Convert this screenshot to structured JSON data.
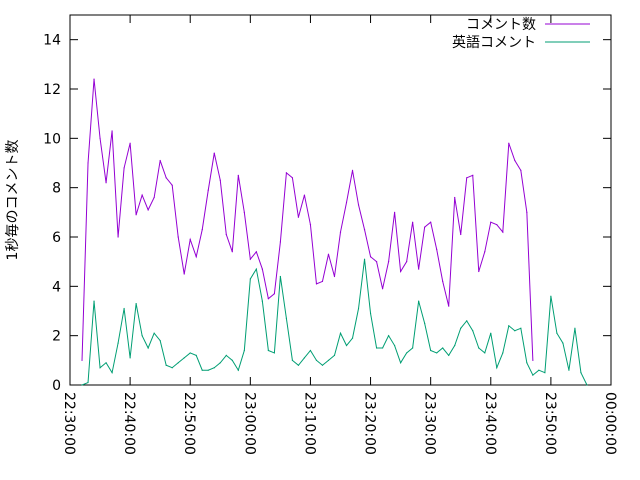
{
  "chart_data": {
    "type": "line",
    "title": "",
    "xlabel": "",
    "ylabel": "1秒毎のコメント数",
    "ylim": [
      0,
      15
    ],
    "xlim": [
      "22:30:00",
      "00:00:00"
    ],
    "x_ticks": [
      "22:30:00",
      "22:40:00",
      "22:50:00",
      "23:00:00",
      "23:10:00",
      "23:20:00",
      "23:30:00",
      "23:40:00",
      "23:50:00",
      "00:00:00"
    ],
    "y_ticks": [
      "0",
      "2",
      "4",
      "6",
      "8",
      "10",
      "12",
      "14"
    ],
    "grid": false,
    "legend_position": "top-right",
    "x": [
      "22:32:00",
      "22:33:00",
      "22:34:00",
      "22:35:00",
      "22:36:00",
      "22:37:00",
      "22:38:00",
      "22:39:00",
      "22:40:00",
      "22:41:00",
      "22:42:00",
      "22:43:00",
      "22:44:00",
      "22:45:00",
      "22:46:00",
      "22:47:00",
      "22:48:00",
      "22:49:00",
      "22:50:00",
      "22:51:00",
      "22:52:00",
      "22:53:00",
      "22:54:00",
      "22:55:00",
      "22:56:00",
      "22:57:00",
      "22:58:00",
      "22:59:00",
      "23:00:00",
      "23:01:00",
      "23:02:00",
      "23:03:00",
      "23:04:00",
      "23:05:00",
      "23:06:00",
      "23:07:00",
      "23:08:00",
      "23:09:00",
      "23:10:00",
      "23:11:00",
      "23:12:00",
      "23:13:00",
      "23:14:00",
      "23:15:00",
      "23:16:00",
      "23:17:00",
      "23:18:00",
      "23:19:00",
      "23:20:00",
      "23:21:00",
      "23:22:00",
      "23:23:00",
      "23:24:00",
      "23:25:00",
      "23:26:00",
      "23:27:00",
      "23:28:00",
      "23:29:00",
      "23:30:00",
      "23:31:00",
      "23:32:00",
      "23:33:00",
      "23:34:00",
      "23:35:00",
      "23:36:00",
      "23:37:00",
      "23:38:00",
      "23:39:00",
      "23:40:00",
      "23:41:00",
      "23:42:00",
      "23:43:00",
      "23:44:00",
      "23:45:00",
      "23:46:00",
      "23:47:00",
      "23:48:00",
      "23:49:00",
      "23:50:00",
      "23:51:00",
      "23:52:00",
      "23:53:00",
      "23:54:00",
      "23:55:00",
      "23:56:00"
    ],
    "series": [
      {
        "name": "コメント数",
        "color": "#9400d3",
        "values": [
          1.0,
          9.0,
          12.4,
          10.0,
          8.2,
          10.3,
          6.0,
          8.8,
          9.8,
          6.9,
          7.7,
          7.1,
          7.6,
          9.1,
          8.4,
          8.1,
          6.0,
          4.5,
          5.9,
          5.2,
          6.3,
          7.9,
          9.4,
          8.3,
          6.1,
          5.4,
          8.5,
          7.0,
          5.1,
          5.4,
          4.7,
          3.5,
          3.7,
          5.8,
          8.6,
          8.4,
          6.8,
          7.7,
          6.5,
          4.1,
          4.2,
          5.3,
          4.4,
          6.2,
          7.4,
          8.7,
          7.3,
          6.3,
          5.2,
          5.0,
          3.9,
          5.0,
          7.0,
          4.6,
          5.0,
          6.6,
          4.7,
          6.4,
          6.6,
          5.5,
          4.2,
          3.2,
          7.6,
          6.1,
          8.4,
          8.5,
          4.6,
          5.4,
          6.6,
          6.5,
          6.2,
          9.8,
          9.1,
          8.7,
          7.0,
          1.0,
          null,
          null,
          null,
          null,
          null,
          null,
          null,
          null,
          null
        ]
      },
      {
        "name": "英語コメント",
        "color": "#009e73",
        "values": [
          0.0,
          0.1,
          3.4,
          0.7,
          0.9,
          0.5,
          1.7,
          3.1,
          1.1,
          3.3,
          2.0,
          1.5,
          2.1,
          1.8,
          0.8,
          0.7,
          0.9,
          1.1,
          1.3,
          1.2,
          0.6,
          0.6,
          0.7,
          0.9,
          1.2,
          1.0,
          0.6,
          1.4,
          4.3,
          4.7,
          3.4,
          1.4,
          1.3,
          4.4,
          2.7,
          1.0,
          0.8,
          1.1,
          1.4,
          1.0,
          0.8,
          1.0,
          1.2,
          2.1,
          1.6,
          1.9,
          3.1,
          5.1,
          2.9,
          1.5,
          1.5,
          2.0,
          1.6,
          0.9,
          1.3,
          1.5,
          3.4,
          2.5,
          1.4,
          1.3,
          1.5,
          1.2,
          1.6,
          2.3,
          2.6,
          2.2,
          1.5,
          1.3,
          2.1,
          0.7,
          1.3,
          2.4,
          2.2,
          2.3,
          0.9,
          0.4,
          0.6,
          0.5,
          3.6,
          2.1,
          1.7,
          0.6,
          2.3,
          0.5,
          0.0
        ]
      }
    ]
  }
}
